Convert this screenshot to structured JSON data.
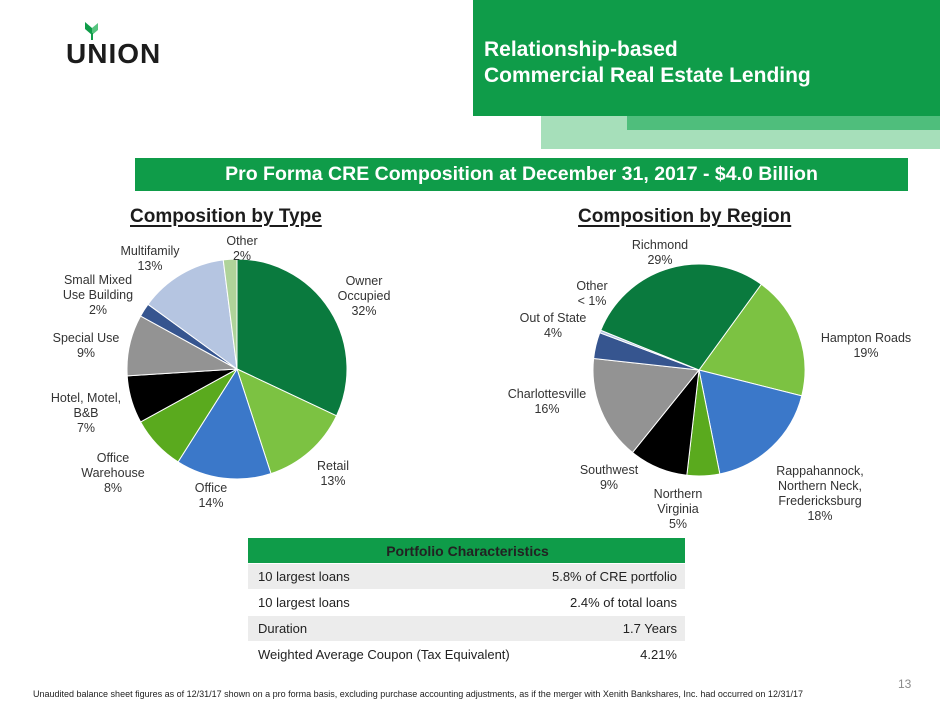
{
  "header": {
    "logo_text": "UNION",
    "title_line1": "Relationship-based",
    "title_line2": "Commercial Real Estate Lending"
  },
  "subtitle": "Pro Forma CRE Composition at December 31, 2017 - $4.0 Billion",
  "colors": {
    "brand_green": "#0f9c49",
    "light_green_band": "#a6dfba",
    "mid_green_band": "#4fbe7c"
  },
  "chart_data": [
    {
      "type": "pie",
      "title": "Composition by Type",
      "start_angle_deg": 0,
      "direction": "clockwise",
      "slices": [
        {
          "label": "Owner Occupied",
          "label_lines": [
            "Owner",
            "Occupied",
            "32%"
          ],
          "value": 32,
          "color": "#0a7a3e"
        },
        {
          "label": "Retail",
          "label_lines": [
            "Retail",
            "13%"
          ],
          "value": 13,
          "color": "#7cc242"
        },
        {
          "label": "Office",
          "label_lines": [
            "Office",
            "14%"
          ],
          "value": 14,
          "color": "#3b78c9"
        },
        {
          "label": "Office Warehouse",
          "label_lines": [
            "Office",
            "Warehouse",
            "8%"
          ],
          "value": 8,
          "color": "#5aaa1e"
        },
        {
          "label": "Hotel, Motel, B&B",
          "label_lines": [
            "Hotel, Motel,",
            "B&B",
            "7%"
          ],
          "value": 7,
          "color": "#000000"
        },
        {
          "label": "Special Use",
          "label_lines": [
            "Special Use",
            "9%"
          ],
          "value": 9,
          "color": "#939393"
        },
        {
          "label": "Small Mixed Use Building",
          "label_lines": [
            "Small Mixed",
            "Use Building",
            "2%"
          ],
          "value": 2,
          "color": "#36558f"
        },
        {
          "label": "Multifamily",
          "label_lines": [
            "Multifamily",
            "13%"
          ],
          "value": 13,
          "color": "#b5c5e1"
        },
        {
          "label": "Other",
          "label_lines": [
            "Other",
            "2%"
          ],
          "value": 2,
          "color": "#afd39a"
        }
      ]
    },
    {
      "type": "pie",
      "title": "Composition by Region",
      "start_angle_deg": 36,
      "direction": "clockwise",
      "slices": [
        {
          "label": "Hampton Roads",
          "label_lines": [
            "Hampton Roads",
            "19%"
          ],
          "value": 19,
          "color": "#7cc242"
        },
        {
          "label": "Rappahannock, Northern Neck, Fredericksburg",
          "label_lines": [
            "Rappahannock,",
            "Northern Neck,",
            "Fredericksburg",
            "18%"
          ],
          "value": 18,
          "color": "#3b78c9"
        },
        {
          "label": "Northern Virginia",
          "label_lines": [
            "Northern",
            "Virginia",
            "5%"
          ],
          "value": 5,
          "color": "#5aaa1e"
        },
        {
          "label": "Southwest",
          "label_lines": [
            "Southwest",
            "9%"
          ],
          "value": 9,
          "color": "#000000"
        },
        {
          "label": "Charlottesville",
          "label_lines": [
            "Charlottesville",
            "16%"
          ],
          "value": 16,
          "color": "#939393"
        },
        {
          "label": "Out of State",
          "label_lines": [
            "Out of State",
            "4%"
          ],
          "value": 4,
          "color": "#36558f"
        },
        {
          "label": "Other",
          "label_lines": [
            "Other",
            "< 1%"
          ],
          "value": 0.4,
          "color": "#b5c5e1"
        },
        {
          "label": "Richmond",
          "label_lines": [
            "Richmond",
            "29%"
          ],
          "value": 29,
          "color": "#0a7a3e"
        }
      ]
    }
  ],
  "portfolio": {
    "header": "Portfolio Characteristics",
    "rows": [
      {
        "label": "10 largest loans",
        "value": "5.8% of CRE portfolio"
      },
      {
        "label": "10 largest loans",
        "value": "2.4% of total loans"
      },
      {
        "label": "Duration",
        "value": "1.7 Years"
      },
      {
        "label": "Weighted Average Coupon (Tax Equivalent)",
        "value": "4.21%"
      }
    ]
  },
  "footnote": "Unaudited balance sheet figures as of 12/31/17 shown on a pro forma basis, excluding purchase accounting adjustments, as if the merger with Xenith Bankshares, Inc. had occurred on 12/31/17",
  "page_number": "13"
}
